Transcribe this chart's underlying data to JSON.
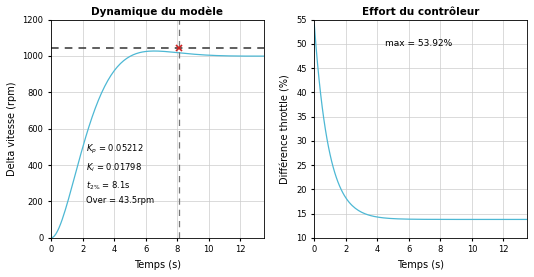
{
  "title_left": "Dynamique du modèle",
  "title_right": "Effort du contrôleur",
  "xlabel": "Temps (s)",
  "ylabel_left": "Delta vitesse (rpm)",
  "ylabel_right": "Différence throttle (%)",
  "xlim": [
    0,
    13.5
  ],
  "ylim_left": [
    0,
    1200
  ],
  "ylim_right": [
    10,
    55
  ],
  "yticks_left": [
    0,
    200,
    400,
    600,
    800,
    1000,
    1200
  ],
  "yticks_right": [
    10,
    15,
    20,
    25,
    30,
    35,
    40,
    45,
    50,
    55
  ],
  "xticks": [
    0,
    2,
    4,
    6,
    8,
    10,
    12
  ],
  "setpoint": 1000,
  "dashed_ref": 1043,
  "t2pct": 8.1,
  "overshoot_val": 43.5,
  "Kp": 0.05212,
  "Ki": 0.01798,
  "max_throttle": 53.92,
  "line_color": "#4db8d4",
  "ref_color": "#333333",
  "marker_color": "#cc2222",
  "text_color": "#000000",
  "grid_color": "#cccccc",
  "dt": 0.1
}
